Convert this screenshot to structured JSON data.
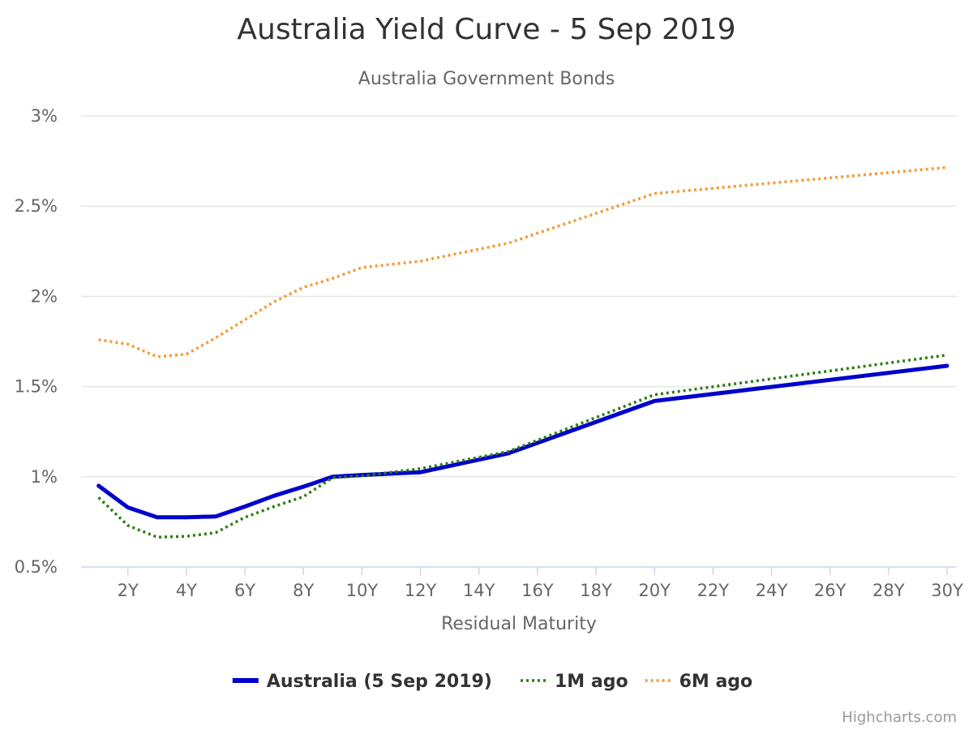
{
  "chart_data": {
    "type": "line",
    "title": "Australia Yield Curve - 5 Sep 2019",
    "subtitle": "Australia Government Bonds",
    "xlabel": "Residual Maturity",
    "ylabel": "",
    "ylim": [
      0.5,
      3
    ],
    "xlim": [
      0.4,
      30
    ],
    "yticks": [
      {
        "value": 0.5,
        "label": "0.5%"
      },
      {
        "value": 1,
        "label": "1%"
      },
      {
        "value": 1.5,
        "label": "1.5%"
      },
      {
        "value": 2,
        "label": "2%"
      },
      {
        "value": 2.5,
        "label": "2.5%"
      },
      {
        "value": 3,
        "label": "3%"
      }
    ],
    "xticks": [
      {
        "value": 2,
        "label": "2Y"
      },
      {
        "value": 4,
        "label": "4Y"
      },
      {
        "value": 6,
        "label": "6Y"
      },
      {
        "value": 8,
        "label": "8Y"
      },
      {
        "value": 10,
        "label": "10Y"
      },
      {
        "value": 12,
        "label": "12Y"
      },
      {
        "value": 14,
        "label": "14Y"
      },
      {
        "value": 16,
        "label": "16Y"
      },
      {
        "value": 18,
        "label": "18Y"
      },
      {
        "value": 20,
        "label": "20Y"
      },
      {
        "value": 22,
        "label": "22Y"
      },
      {
        "value": 24,
        "label": "24Y"
      },
      {
        "value": 26,
        "label": "26Y"
      },
      {
        "value": 28,
        "label": "28Y"
      },
      {
        "value": 30,
        "label": "30Y"
      }
    ],
    "grid": true,
    "legend_position": "bottom-center",
    "series": [
      {
        "name": "Australia (5 Sep 2019)",
        "color": "#0000cc",
        "dash": "solid",
        "x": [
          1,
          2,
          3,
          4,
          5,
          6,
          7,
          8,
          9,
          10,
          12,
          15,
          20,
          30
        ],
        "values": [
          0.95,
          0.83,
          0.775,
          0.775,
          0.78,
          0.835,
          0.895,
          0.945,
          1.0,
          1.01,
          1.025,
          1.13,
          1.42,
          1.615
        ]
      },
      {
        "name": "1M ago",
        "color": "#2e7d12",
        "dash": "dotted",
        "x": [
          1,
          2,
          3,
          4,
          5,
          6,
          7,
          8,
          9,
          10,
          12,
          15,
          20,
          30
        ],
        "values": [
          0.885,
          0.73,
          0.665,
          0.67,
          0.69,
          0.775,
          0.835,
          0.89,
          0.995,
          1.005,
          1.045,
          1.14,
          1.455,
          1.675
        ]
      },
      {
        "name": "6M ago",
        "color": "#f59a34",
        "dash": "dotted",
        "x": [
          1,
          2,
          3,
          4,
          5,
          6,
          7,
          8,
          9,
          10,
          12,
          15,
          20,
          30
        ],
        "values": [
          1.76,
          1.735,
          1.665,
          1.68,
          1.77,
          1.87,
          1.97,
          2.05,
          2.1,
          2.16,
          2.195,
          2.295,
          2.57,
          2.715
        ]
      }
    ],
    "credits": "Highcharts.com"
  }
}
